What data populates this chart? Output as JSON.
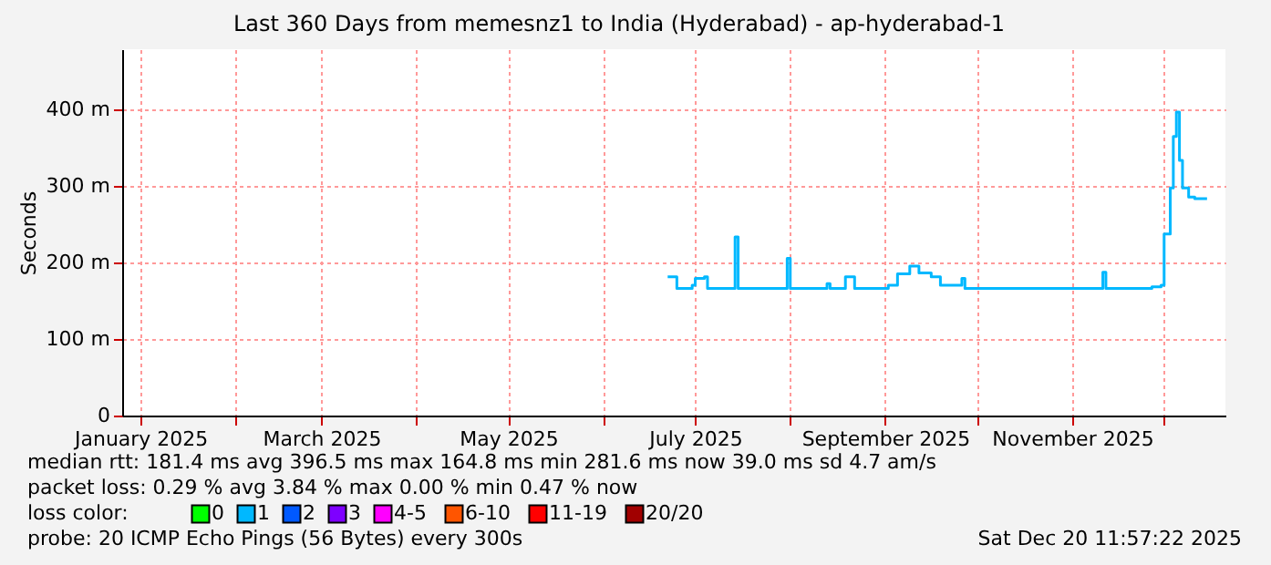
{
  "chart_data": {
    "type": "step",
    "title": "Last 360 Days from memesnz1 to India (Hyderabad) - ap-hyderabad-1",
    "ylabel": "Seconds",
    "xlim": [
      "2024-12-26",
      "2025-12-21"
    ],
    "ylim": [
      0,
      478
    ],
    "xticks": [
      {
        "value": "2025-01-01",
        "label": "January 2025"
      },
      {
        "value": "2025-02-01",
        "label": null
      },
      {
        "value": "2025-03-01",
        "label": "March 2025"
      },
      {
        "value": "2025-04-01",
        "label": null
      },
      {
        "value": "2025-05-01",
        "label": "May 2025"
      },
      {
        "value": "2025-06-01",
        "label": null
      },
      {
        "value": "2025-07-01",
        "label": "July 2025"
      },
      {
        "value": "2025-08-01",
        "label": null
      },
      {
        "value": "2025-09-01",
        "label": "September 2025"
      },
      {
        "value": "2025-10-01",
        "label": null
      },
      {
        "value": "2025-11-01",
        "label": "November 2025"
      },
      {
        "value": "2025-12-01",
        "label": null
      }
    ],
    "yticks": [
      0,
      {
        "value": 100,
        "label": "100 m"
      },
      {
        "value": 200,
        "label": "200 m"
      },
      {
        "value": 300,
        "label": "300 m"
      },
      {
        "value": 400,
        "label": "400 m"
      }
    ],
    "grid": true,
    "marker": "none",
    "line_style": "solid",
    "legend": "bottom",
    "legend_title": "loss color:",
    "series": [
      {
        "name": "0",
        "color": "#00ff00"
      },
      {
        "name": "1",
        "color": "#00b8ff",
        "x": [
          "2025-06-22",
          "2025-06-25",
          "2025-06-30",
          "2025-07-01",
          "2025-07-04",
          "2025-07-05",
          "2025-07-13",
          "2025-07-14",
          "2025-07-15",
          "2025-07-31",
          "2025-08-01",
          "2025-08-13",
          "2025-08-14",
          "2025-08-19",
          "2025-08-22",
          "2025-09-02",
          "2025-09-05",
          "2025-09-09",
          "2025-09-12",
          "2025-09-16",
          "2025-09-19",
          "2025-09-26",
          "2025-09-27",
          "2025-11-11",
          "2025-11-12",
          "2025-11-27",
          "2025-11-30",
          "2025-12-01",
          "2025-12-03",
          "2025-12-04",
          "2025-12-05",
          "2025-12-06",
          "2025-12-07",
          "2025-12-09",
          "2025-12-11",
          "2025-12-15"
        ],
        "values": [
          181,
          166,
          170,
          179,
          181,
          166,
          166,
          233,
          166,
          205,
          166,
          172,
          166,
          181,
          166,
          170,
          185,
          195,
          186,
          181,
          170,
          179,
          166,
          187,
          166,
          168,
          170,
          237,
          297,
          364,
          396,
          333,
          297,
          285,
          283,
          283
        ]
      },
      {
        "name": "2",
        "color": "#0059ff"
      },
      {
        "name": "3",
        "color": "#7e00ff"
      },
      {
        "name": "4-5",
        "color": "#ff00ff"
      },
      {
        "name": "6-10",
        "color": "#ff5500"
      },
      {
        "name": "11-19",
        "color": "#ff0000"
      },
      {
        "name": "20/20",
        "color": "#a10000"
      }
    ],
    "annotations": [
      "median rtt:  181.4 ms avg    396.5 ms max    164.8 ms min    281.6 ms now    39.0 ms sd    4.7    am/s",
      "packet loss: 0.29 % avg    3.84 % max    0.00 % min    0.47 % now",
      "probe:       20 ICMP Echo Pings (56 Bytes) every 300s",
      "Sat Dec 20 11:57:22 2025"
    ]
  }
}
